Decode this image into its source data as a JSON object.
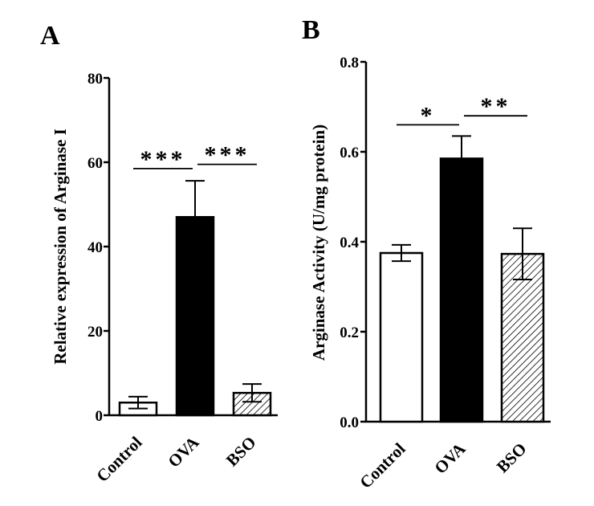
{
  "chart_data": [
    {
      "type": "bar",
      "panel_label": "A",
      "ylabel": "Relative expression of Arginase I",
      "xlabel": "",
      "categories": [
        "Control",
        "OVA",
        "BSO"
      ],
      "values": [
        3,
        47,
        5.3
      ],
      "errors": [
        1.4,
        8.6,
        2.1
      ],
      "fills": [
        "white",
        "black",
        "hatch"
      ],
      "ylim": [
        0,
        80
      ],
      "yticks": [
        0,
        20,
        40,
        60,
        80
      ],
      "significance": [
        {
          "from": 0,
          "to": 1,
          "label": "***",
          "y": 58.5
        },
        {
          "from": 1,
          "to": 2,
          "label": "***",
          "y": 59.5
        }
      ]
    },
    {
      "type": "bar",
      "panel_label": "B",
      "ylabel": "Arginase Activity (U/mg protein)",
      "xlabel": "",
      "categories": [
        "Control",
        "OVA",
        "BSO"
      ],
      "values": [
        0.375,
        0.585,
        0.373
      ],
      "errors": [
        0.018,
        0.05,
        0.057
      ],
      "fills": [
        "white",
        "black",
        "hatch"
      ],
      "ylim": [
        0,
        0.8
      ],
      "yticks": [
        "0.0",
        "0.2",
        "0.4",
        "0.6",
        "0.8"
      ],
      "significance": [
        {
          "from": 0,
          "to": 1,
          "label": "*",
          "y": 0.66
        },
        {
          "from": 1,
          "to": 2,
          "label": "**",
          "y": 0.68
        }
      ]
    }
  ]
}
